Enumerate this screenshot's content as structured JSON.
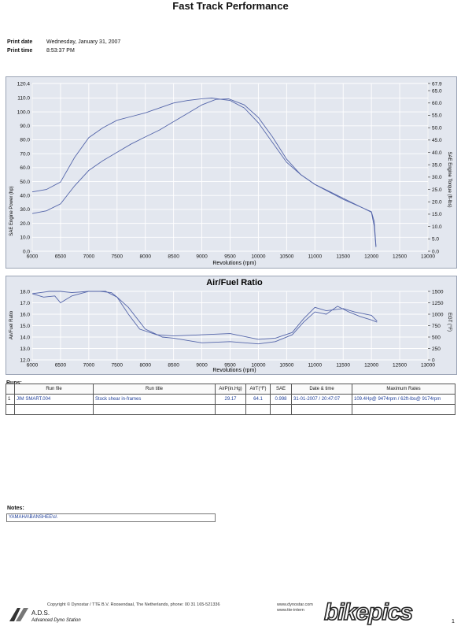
{
  "header": {
    "title": "Fast Track Performance",
    "print_date_label": "Print date",
    "print_date_value": "Wednesday, January 31, 2007",
    "print_time_label": "Print time",
    "print_time_value": "8:53:37 PM"
  },
  "colors": {
    "panel_bg": "#e3e7ef",
    "grid": "#ffffff",
    "series": "#5566aa",
    "accent": "#1f3f9a"
  },
  "chart_data": [
    {
      "type": "line",
      "title": "",
      "xlabel": "Revolutions (rpm)",
      "ylabel": "SAE Engine Power (hp)",
      "y2label": "SAE Engine Torque (ft-lbs)",
      "xlim": [
        6000,
        13000
      ],
      "ylim": [
        0,
        120.4
      ],
      "y2lim": [
        0,
        67.9
      ],
      "x_ticks": [
        "6000",
        "6500",
        "7000",
        "7500",
        "8000",
        "8500",
        "9000",
        "9500",
        "10000",
        "10500",
        "11000",
        "11500",
        "12000",
        "12500",
        "13000"
      ],
      "y_ticks": [
        "0.0",
        "10.0",
        "20.0",
        "30.0",
        "40.0",
        "50.0",
        "60.0",
        "70.0",
        "80.0",
        "90.0",
        "100.0",
        "110.0",
        "120.4"
      ],
      "y2_ticks": [
        "0.0",
        "5.0",
        "10.0",
        "15.0",
        "20.0",
        "25.0",
        "30.0",
        "35.0",
        "40.0",
        "45.0",
        "50.0",
        "55.0",
        "60.0",
        "65.0",
        "67.9"
      ],
      "grid": true,
      "series": [
        {
          "axis": "left",
          "x": [
            6000,
            6250,
            6500,
            6750,
            7000,
            7250,
            7500,
            7750,
            8000,
            8250,
            8500,
            8750,
            9000,
            9250,
            9474,
            9750,
            10000,
            10250,
            10500,
            10750,
            11000,
            11250,
            11500,
            11750,
            12000,
            12050,
            12080
          ],
          "y": [
            27,
            29,
            34,
            47,
            58,
            65,
            71,
            77,
            82,
            87,
            93,
            99,
            105,
            109,
            109.4,
            105,
            96,
            82,
            66,
            55,
            48,
            43,
            38,
            33,
            28,
            18,
            3
          ]
        },
        {
          "axis": "right",
          "x": [
            6000,
            6250,
            6500,
            6750,
            7000,
            7250,
            7500,
            7750,
            8000,
            8250,
            8500,
            8750,
            9000,
            9174,
            9500,
            9750,
            10000,
            10250,
            10500,
            10750,
            11000,
            11250,
            11500,
            11750,
            12000,
            12050,
            12080
          ],
          "y": [
            24,
            25,
            28,
            38,
            46,
            50,
            53,
            54.5,
            56,
            58,
            60,
            61,
            61.7,
            62,
            61,
            58,
            52,
            44,
            36,
            31,
            27,
            24,
            21,
            18.5,
            16,
            12,
            2
          ]
        }
      ]
    },
    {
      "type": "line",
      "title": "Air/Fuel Ratio",
      "xlabel": "Revolutions (rpm)",
      "ylabel": "Air/Fuel Ratio",
      "y2label": "EGT (°F)",
      "xlim": [
        6000,
        13000
      ],
      "ylim": [
        12,
        18
      ],
      "y2lim": [
        0,
        1500
      ],
      "x_ticks": [
        "6000",
        "6500",
        "7000",
        "7500",
        "8000",
        "8500",
        "9000",
        "9500",
        "10000",
        "10500",
        "11000",
        "11500",
        "12000",
        "12500",
        "13000"
      ],
      "y_ticks": [
        "12.0",
        "13.0",
        "14.0",
        "15.0",
        "16.0",
        "17.0",
        "18.0"
      ],
      "y2_ticks": [
        "0",
        "250",
        "500",
        "750",
        "1000",
        "1250",
        "1500"
      ],
      "grid": true,
      "series": [
        {
          "axis": "left",
          "x": [
            6000,
            6200,
            6400,
            6500,
            6700,
            7000,
            7200,
            7400,
            7500,
            7700,
            7900,
            8200,
            8500,
            9000,
            9500,
            10000,
            10300,
            10600,
            10800,
            11000,
            11200,
            11500,
            11700,
            12000,
            12100
          ],
          "y": [
            17.8,
            17.5,
            17.6,
            17.0,
            17.6,
            18.0,
            18.0,
            17.9,
            17.5,
            16.0,
            14.7,
            14.2,
            14.1,
            14.2,
            14.3,
            13.8,
            13.9,
            14.4,
            15.6,
            16.6,
            16.3,
            16.5,
            16.2,
            15.9,
            15.4
          ]
        },
        {
          "axis": "left",
          "x": [
            6000,
            6300,
            6500,
            6700,
            7000,
            7300,
            7500,
            7700,
            8000,
            8300,
            8500,
            9000,
            9500,
            10000,
            10300,
            10600,
            10800,
            11000,
            11200,
            11400,
            11600,
            11800,
            12000,
            12100
          ],
          "y": [
            17.8,
            18.0,
            18.0,
            17.9,
            18.0,
            18.0,
            17.5,
            16.6,
            14.7,
            14.0,
            13.9,
            13.5,
            13.6,
            13.4,
            13.6,
            14.2,
            15.3,
            16.2,
            16.0,
            16.7,
            16.2,
            15.8,
            15.5,
            15.3
          ]
        }
      ]
    }
  ],
  "runs": {
    "label": "Runs:",
    "headers": [
      "Run file",
      "Run title",
      "AirP(in.Hg)",
      "AirT(°F)",
      "SAE",
      "Date & time",
      "Maximum Rates"
    ],
    "rows": [
      {
        "no": "1",
        "file": "JIM SMART.004",
        "title": "Stock shear in-frames",
        "airp": "29.17",
        "airt": "64.1",
        "sae": "0.998",
        "datetime": "31-01-2007 / 20:47:07",
        "max": "109.4Hp@ 9474rpm / 62ft-lbs@ 9174rpm"
      }
    ]
  },
  "notes": {
    "label": "Notes:",
    "value": "YAMAHA\\BANSHEE\\s\\"
  },
  "footer": {
    "copyright": "Copyright  ©  Dynostar / TTE B.V. Roosendaal, The Netherlands, phone: 00 31 165-521336",
    "web1": "www.dynostar.com",
    "web2": "www.tte-intern",
    "logo_name": "A.D.S.",
    "logo_tag": "Advanced Dyno Station",
    "page": "1",
    "watermark": "bikepics"
  }
}
